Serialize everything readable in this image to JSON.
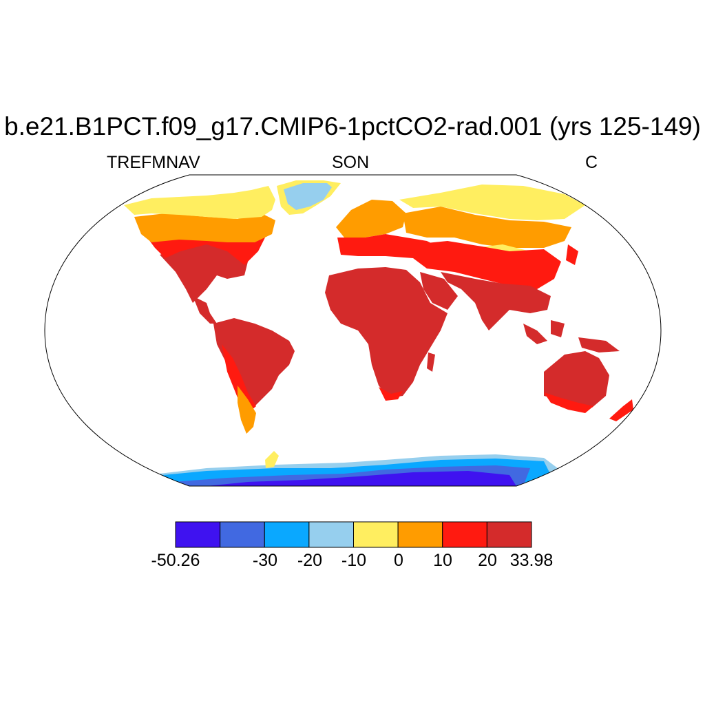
{
  "title": "b.e21.B1PCT.f09_g17.CMIP6-1pctCO2-rad.001 (yrs 125-149)",
  "variable": "TREFMNAV",
  "season": "SON",
  "units": "C",
  "colorbar": {
    "min_label": "-50.26",
    "max_label": "33.98",
    "levels": [
      "-30",
      "-20",
      "-10",
      "0",
      "10",
      "20"
    ],
    "colors": [
      "#3f12f0",
      "#4169e1",
      "#0aa8ff",
      "#96cfee",
      "#ffee60",
      "#ff9c00",
      "#ff1a10",
      "#d42b2b"
    ]
  },
  "map": {
    "projection": "robinson",
    "ocean_color": "#ffffff",
    "coastlines": true
  }
}
